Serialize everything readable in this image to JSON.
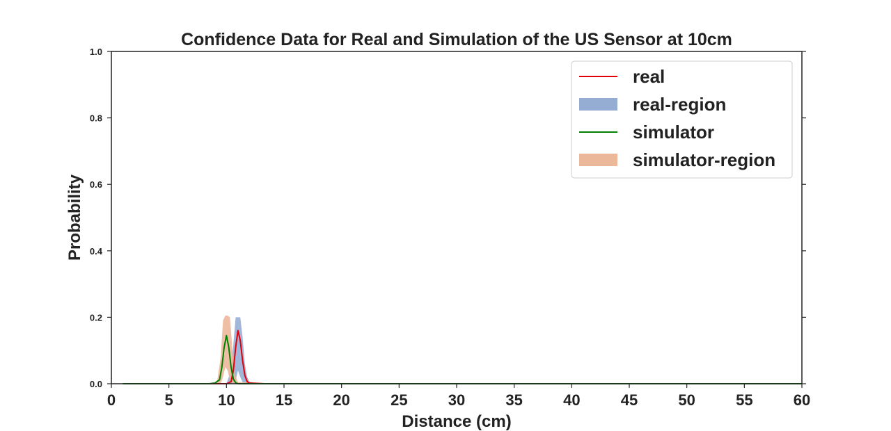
{
  "chart_data": {
    "type": "line",
    "title": "Confidence Data for Real and Simulation of the US Sensor at 10cm",
    "xlabel": "Distance (cm)",
    "ylabel": "Probability",
    "xlim": [
      0,
      60
    ],
    "ylim": [
      0,
      1.0
    ],
    "xticks": [
      "0",
      "5",
      "10",
      "15",
      "20",
      "25",
      "30",
      "35",
      "40",
      "45",
      "50",
      "55",
      "60"
    ],
    "yticks": [
      "0.0",
      "0.2",
      "0.4",
      "0.6",
      "0.8",
      "1.0"
    ],
    "grid": false,
    "legend_position": "top-right",
    "series": [
      {
        "name": "real",
        "kind": "line",
        "color": "#e3000b",
        "x": [
          1.0,
          9.0,
          10.0,
          10.4,
          10.6,
          10.8,
          11.0,
          11.2,
          11.4,
          11.6,
          11.8,
          12.0,
          13.0,
          60.0
        ],
        "y": [
          0.0,
          0.0,
          0.0,
          0.006,
          0.04,
          0.11,
          0.16,
          0.13,
          0.07,
          0.025,
          0.006,
          0.002,
          0.0,
          0.0
        ]
      },
      {
        "name": "real-region",
        "kind": "band",
        "color": "#90a9d1",
        "x": [
          1.0,
          10.0,
          10.4,
          10.6,
          10.8,
          11.0,
          11.2,
          11.4,
          11.6,
          11.8,
          12.0,
          13.0,
          60.0
        ],
        "upper": [
          0.0,
          0.0,
          0.04,
          0.12,
          0.2,
          0.2,
          0.2,
          0.14,
          0.06,
          0.02,
          0.006,
          0.0,
          0.0
        ],
        "lower": [
          0.0,
          0.0,
          0.0,
          0.0,
          0.01,
          0.04,
          0.02,
          0.005,
          0.0,
          0.0,
          0.0,
          0.0,
          0.0
        ]
      },
      {
        "name": "simulator",
        "kind": "line",
        "color": "#008000",
        "x": [
          1.0,
          8.5,
          9.0,
          9.4,
          9.6,
          9.8,
          10.0,
          10.2,
          10.4,
          10.6,
          10.8,
          11.0,
          12.0,
          60.0
        ],
        "y": [
          0.0,
          0.0,
          0.002,
          0.012,
          0.05,
          0.11,
          0.145,
          0.11,
          0.05,
          0.014,
          0.003,
          0.0,
          0.0,
          0.0
        ]
      },
      {
        "name": "simulator-region",
        "kind": "band",
        "color": "#ebb495",
        "x": [
          1.0,
          8.8,
          9.2,
          9.5,
          9.7,
          9.9,
          10.1,
          10.3,
          10.5,
          10.7,
          11.0,
          13.0,
          13.6,
          60.0
        ],
        "upper": [
          0.0,
          0.0,
          0.01,
          0.08,
          0.19,
          0.205,
          0.205,
          0.2,
          0.11,
          0.03,
          0.005,
          0.004,
          0.0,
          0.0
        ],
        "lower": [
          0.0,
          0.0,
          0.0,
          0.0,
          0.02,
          0.05,
          0.04,
          0.01,
          0.0,
          0.0,
          0.0,
          0.0,
          0.0,
          0.0
        ]
      }
    ]
  }
}
